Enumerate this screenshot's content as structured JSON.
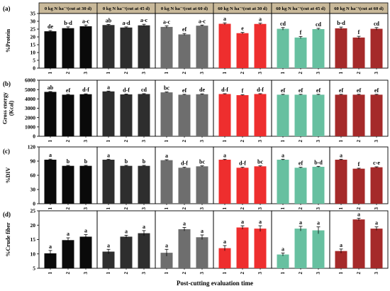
{
  "figure": {
    "xlabel": "Post-cutting evaluation time",
    "headers": [
      "0 kg N ha⁻¹(cut at 30 d)",
      "0 kg N ha⁻¹(cut at 45 d)",
      "0 kg N ha⁻¹(cut at 60 d)",
      "60 kg N ha⁻¹(cut at 30 d)",
      "60 kg N ha⁻¹(cut at 45 d)",
      "60 kg N ha⁻¹(cut at 60 d)"
    ],
    "header_bg": "#c9b99a",
    "group_colors": [
      "#0a0a0a",
      "#2e2e2e",
      "#6e6e6e",
      "#ee2e2e",
      "#67c0a0",
      "#a52a2a"
    ],
    "categories": [
      "1",
      "2",
      "3"
    ]
  },
  "chart_data": [
    {
      "type": "bar",
      "panel": "(a)",
      "ylabel": [
        "%Protein"
      ],
      "ylim": [
        0,
        35
      ],
      "yticks": [
        0,
        5,
        10,
        15,
        20,
        25,
        30,
        35
      ],
      "groups": [
        {
          "values": [
            23.6,
            25.6,
            26.8
          ],
          "errors": [
            0.5,
            0.8,
            0.8
          ],
          "letters": [
            "de",
            "b-d",
            "a-c"
          ]
        },
        {
          "values": [
            27.6,
            26.0,
            27.4
          ],
          "errors": [
            0.4,
            0.4,
            0.7
          ],
          "letters": [
            "ab",
            "a-d",
            "a-c"
          ]
        },
        {
          "values": [
            26.4,
            21.6,
            27.2
          ],
          "errors": [
            0.7,
            0.6,
            0.4
          ],
          "letters": [
            "a-c",
            "ef",
            "a-c"
          ]
        },
        {
          "values": [
            28.4,
            22.4,
            28.3
          ],
          "errors": [
            0.6,
            0.5,
            0.5
          ],
          "letters": [
            "a",
            "e",
            "a"
          ]
        },
        {
          "values": [
            25.2,
            19.6,
            25.0
          ],
          "errors": [
            0.8,
            0.7,
            0.5
          ],
          "letters": [
            "cd",
            "f",
            "cd"
          ]
        },
        {
          "values": [
            25.5,
            19.6,
            25.2
          ],
          "errors": [
            0.8,
            0.8,
            0.8
          ],
          "letters": [
            "b-d",
            "f",
            "cd"
          ]
        }
      ]
    },
    {
      "type": "bar",
      "panel": "(b)",
      "ylabel": [
        "Gross energy",
        "(Kcal)"
      ],
      "ylim": [
        0,
        6000
      ],
      "yticks": [
        0,
        1000,
        2000,
        3000,
        4000,
        5000,
        6000
      ],
      "groups": [
        {
          "values": [
            4750,
            4450,
            4500
          ],
          "errors": [
            40,
            40,
            40
          ],
          "letters": [
            "ab",
            "ef",
            "d-f"
          ]
        },
        {
          "values": [
            4800,
            4480,
            4520
          ],
          "errors": [
            40,
            40,
            40
          ],
          "letters": [
            "a",
            "d-f",
            "cd"
          ]
        },
        {
          "values": [
            4700,
            4450,
            4500
          ],
          "errors": [
            40,
            40,
            40
          ],
          "letters": [
            "bc",
            "ef",
            "de"
          ]
        },
        {
          "values": [
            4520,
            4400,
            4520
          ],
          "errors": [
            40,
            40,
            40
          ],
          "letters": [
            "d-f",
            "f",
            "d-f"
          ]
        },
        {
          "values": [
            4450,
            4450,
            4450
          ],
          "errors": [
            40,
            40,
            40
          ],
          "letters": [
            "ef",
            "ef",
            "ef"
          ]
        },
        {
          "values": [
            4450,
            4450,
            4450
          ],
          "errors": [
            40,
            40,
            40
          ],
          "letters": [
            "ef",
            "ef",
            "ef"
          ]
        }
      ]
    },
    {
      "type": "bar",
      "panel": "(c)",
      "ylabel": [
        "%DIV"
      ],
      "ylim": [
        0,
        120
      ],
      "yticks": [
        0,
        30,
        60,
        90,
        120
      ],
      "groups": [
        {
          "values": [
            93,
            80,
            80
          ],
          "errors": [
            1.2,
            1.0,
            1.0
          ],
          "letters": [
            "a",
            "b",
            "b"
          ]
        },
        {
          "values": [
            93,
            80,
            80
          ],
          "errors": [
            1.0,
            1.0,
            1.0
          ],
          "letters": [
            "a",
            "b",
            "b"
          ]
        },
        {
          "values": [
            92,
            76,
            79
          ],
          "errors": [
            1.0,
            1.0,
            1.0
          ],
          "letters": [
            "a",
            "d-f",
            "bc"
          ]
        },
        {
          "values": [
            93,
            76,
            79
          ],
          "errors": [
            1.0,
            1.0,
            1.0
          ],
          "letters": [
            "a",
            "d-f",
            "bc"
          ]
        },
        {
          "values": [
            93,
            76,
            78
          ],
          "errors": [
            1.0,
            1.0,
            1.0
          ],
          "letters": [
            "a",
            "ef",
            "b-d"
          ]
        },
        {
          "values": [
            93,
            74,
            77
          ],
          "errors": [
            1.0,
            1.0,
            1.0
          ],
          "letters": [
            "a",
            "f",
            "c-e"
          ]
        }
      ]
    },
    {
      "type": "bar",
      "panel": "(d)",
      "ylabel": [
        "%Crude fiber"
      ],
      "ylim": [
        5,
        25
      ],
      "yticks": [
        5,
        10,
        15,
        20,
        25
      ],
      "groups": [
        {
          "values": [
            10.2,
            14.8,
            16.0
          ],
          "errors": [
            1.0,
            0.8,
            0.7
          ],
          "letters": [
            "a",
            "a",
            "a"
          ]
        },
        {
          "values": [
            10.8,
            16.0,
            17.2
          ],
          "errors": [
            0.8,
            0.5,
            0.9
          ],
          "letters": [
            "a",
            "a",
            "a"
          ]
        },
        {
          "values": [
            10.4,
            18.6,
            15.8
          ],
          "errors": [
            1.2,
            0.6,
            0.8
          ],
          "letters": [
            "a",
            "a",
            "a"
          ]
        },
        {
          "values": [
            12.0,
            19.2,
            18.8
          ],
          "errors": [
            0.9,
            0.6,
            1.0
          ],
          "letters": [
            "a",
            "a",
            "a"
          ]
        },
        {
          "values": [
            9.8,
            18.8,
            18.2
          ],
          "errors": [
            0.5,
            0.8,
            1.2
          ],
          "letters": [
            "a",
            "a",
            "a"
          ]
        },
        {
          "values": [
            11.0,
            22.0,
            18.8
          ],
          "errors": [
            0.7,
            0.4,
            0.6
          ],
          "letters": [
            "a",
            "a",
            "a"
          ]
        }
      ]
    }
  ]
}
